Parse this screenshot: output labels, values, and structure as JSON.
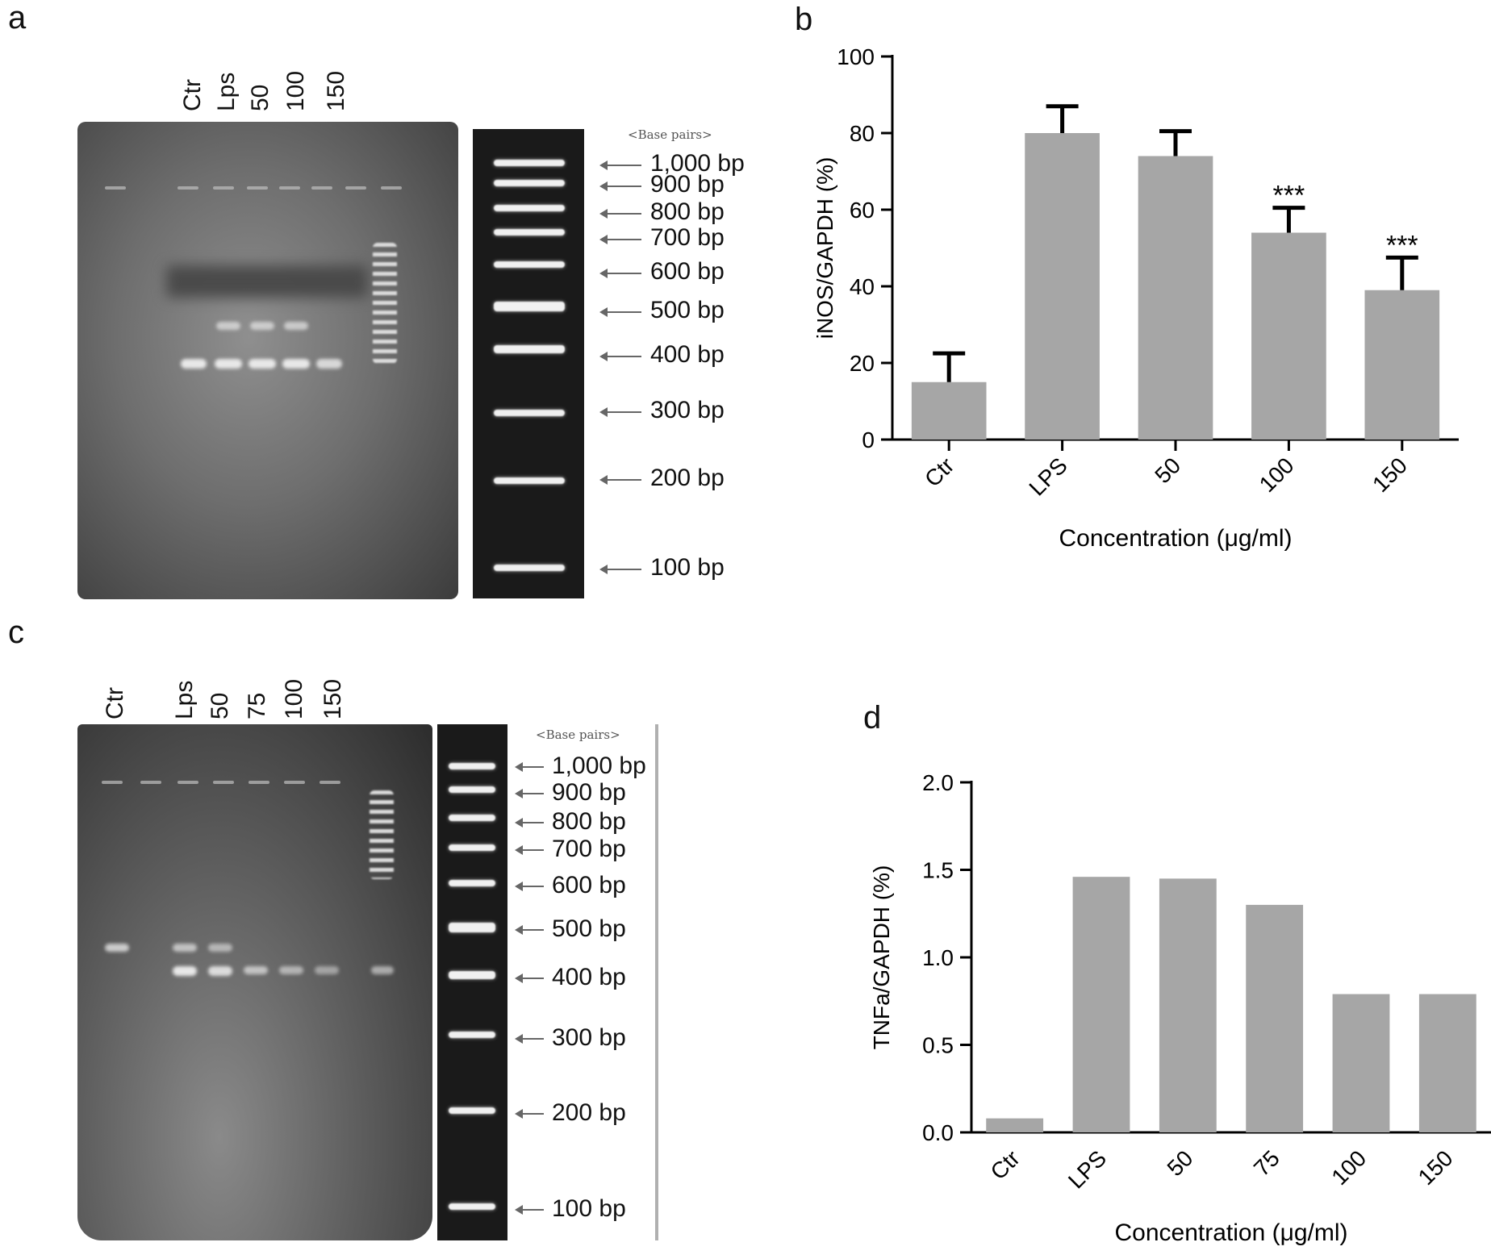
{
  "panels": {
    "a": {
      "letter": "a",
      "lanes": [
        "Ctr",
        "Lps",
        "50",
        "100",
        "150"
      ],
      "header": "<Base pairs>",
      "bp_labels": [
        "1,000 bp",
        "900 bp",
        "800 bp",
        "700 bp",
        "600 bp",
        "500 bp",
        "400 bp",
        "300 bp",
        "200 bp",
        "100 bp"
      ]
    },
    "c": {
      "letter": "c",
      "lanes": [
        "Ctr",
        "Lps",
        "50",
        "75",
        "100",
        "150"
      ],
      "header": "<Base pairs>",
      "bp_labels": [
        "1,000 bp",
        "900 bp",
        "800 bp",
        "700 bp",
        "600 bp",
        "500 bp",
        "400 bp",
        "300 bp",
        "200 bp",
        "100 bp"
      ]
    },
    "b": {
      "letter": "b"
    },
    "d": {
      "letter": "d"
    }
  },
  "chart_data": [
    {
      "panel": "b",
      "type": "bar",
      "categories": [
        "Ctr",
        "LPS",
        "50",
        "100",
        "150"
      ],
      "values": [
        15,
        80,
        74,
        54,
        39
      ],
      "error_upper": [
        22.5,
        87,
        80.5,
        60.5,
        47.5
      ],
      "annotations": [
        "",
        "",
        "",
        "***",
        "***"
      ],
      "ylabel": "iNOS/GAPDH (%)",
      "xlabel": "Concentration (μg/ml)",
      "ylim": [
        0,
        100
      ],
      "yticks": [
        "0",
        "20",
        "40",
        "60",
        "80",
        "100"
      ],
      "bar_color": "#a6a6a6"
    },
    {
      "panel": "d",
      "type": "bar",
      "categories": [
        "Ctr",
        "LPS",
        "50",
        "75",
        "100",
        "150"
      ],
      "values": [
        0.08,
        1.46,
        1.45,
        1.3,
        0.79,
        0.79
      ],
      "ylabel": "TNFa/GAPDH (%)",
      "xlabel": "Concentration (μg/ml)",
      "ylim": [
        0,
        2.0
      ],
      "yticks": [
        "0.0",
        "0.5",
        "1.0",
        "1.5",
        "2.0"
      ],
      "bar_color": "#a6a6a6"
    }
  ]
}
